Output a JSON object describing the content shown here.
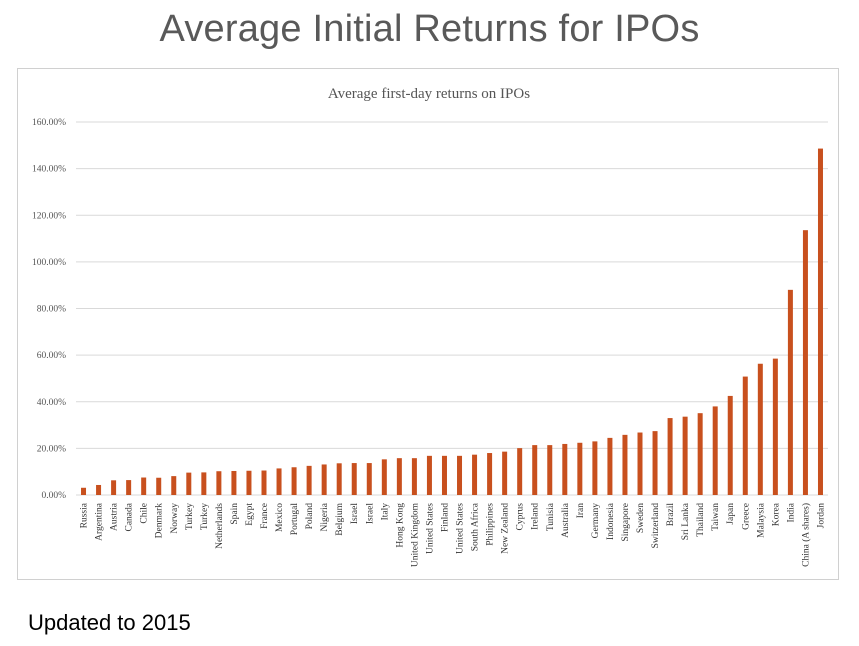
{
  "slide": {
    "title": "Average Initial Returns for IPOs",
    "footnote": "Updated to 2015"
  },
  "colors": {
    "bar": "#c8501e",
    "grid": "#d9d9d9"
  },
  "chart_data": {
    "type": "bar",
    "title": "Average first-day returns on IPOs",
    "xlabel": "",
    "ylabel": "",
    "ylim": [
      0,
      1.6
    ],
    "yticks": [
      0,
      0.2,
      0.4,
      0.6,
      0.8,
      1.0,
      1.2,
      1.4,
      1.6
    ],
    "ytick_labels": [
      "0.00%",
      "20.00%",
      "40.00%",
      "60.00%",
      "80.00%",
      "100.00%",
      "120.00%",
      "140.00%",
      "160.00%"
    ],
    "grid": true,
    "legend": "none",
    "categories": [
      "Russia",
      "Argentina",
      "Austria",
      "Canada",
      "Chile",
      "Denmark",
      "Norway",
      "Turkey",
      "Turkey",
      "Netherlands",
      "Spain",
      "Egypt",
      "France",
      "Mexico",
      "Portugal",
      "Poland",
      "Nigeria",
      "Belgium",
      "Israel",
      "Israel",
      "Italy",
      "Hong Kong",
      "United Kingdom",
      "United States",
      "Finland",
      "United States",
      "South Africa",
      "Philippines",
      "New Zealand",
      "Cyprus",
      "Ireland",
      "Tunisia",
      "Australia",
      "Iran",
      "Germany",
      "Indonesia",
      "Singapore",
      "Sweden",
      "Switzerland",
      "Brazil",
      "Sri Lanka",
      "Thailand",
      "Taiwan",
      "Japan",
      "Greece",
      "Malaysia",
      "Korea",
      "India",
      "China (A shares)",
      "Jordan"
    ],
    "values": [
      0.031,
      0.043,
      0.063,
      0.064,
      0.075,
      0.074,
      0.081,
      0.096,
      0.097,
      0.102,
      0.103,
      0.104,
      0.105,
      0.114,
      0.119,
      0.125,
      0.131,
      0.136,
      0.137,
      0.137,
      0.153,
      0.158,
      0.158,
      0.168,
      0.168,
      0.168,
      0.173,
      0.18,
      0.186,
      0.201,
      0.214,
      0.214,
      0.219,
      0.224,
      0.23,
      0.245,
      0.258,
      0.268,
      0.274,
      0.33,
      0.336,
      0.351,
      0.38,
      0.425,
      0.508,
      0.563,
      0.585,
      0.88,
      1.136,
      1.486
    ]
  }
}
